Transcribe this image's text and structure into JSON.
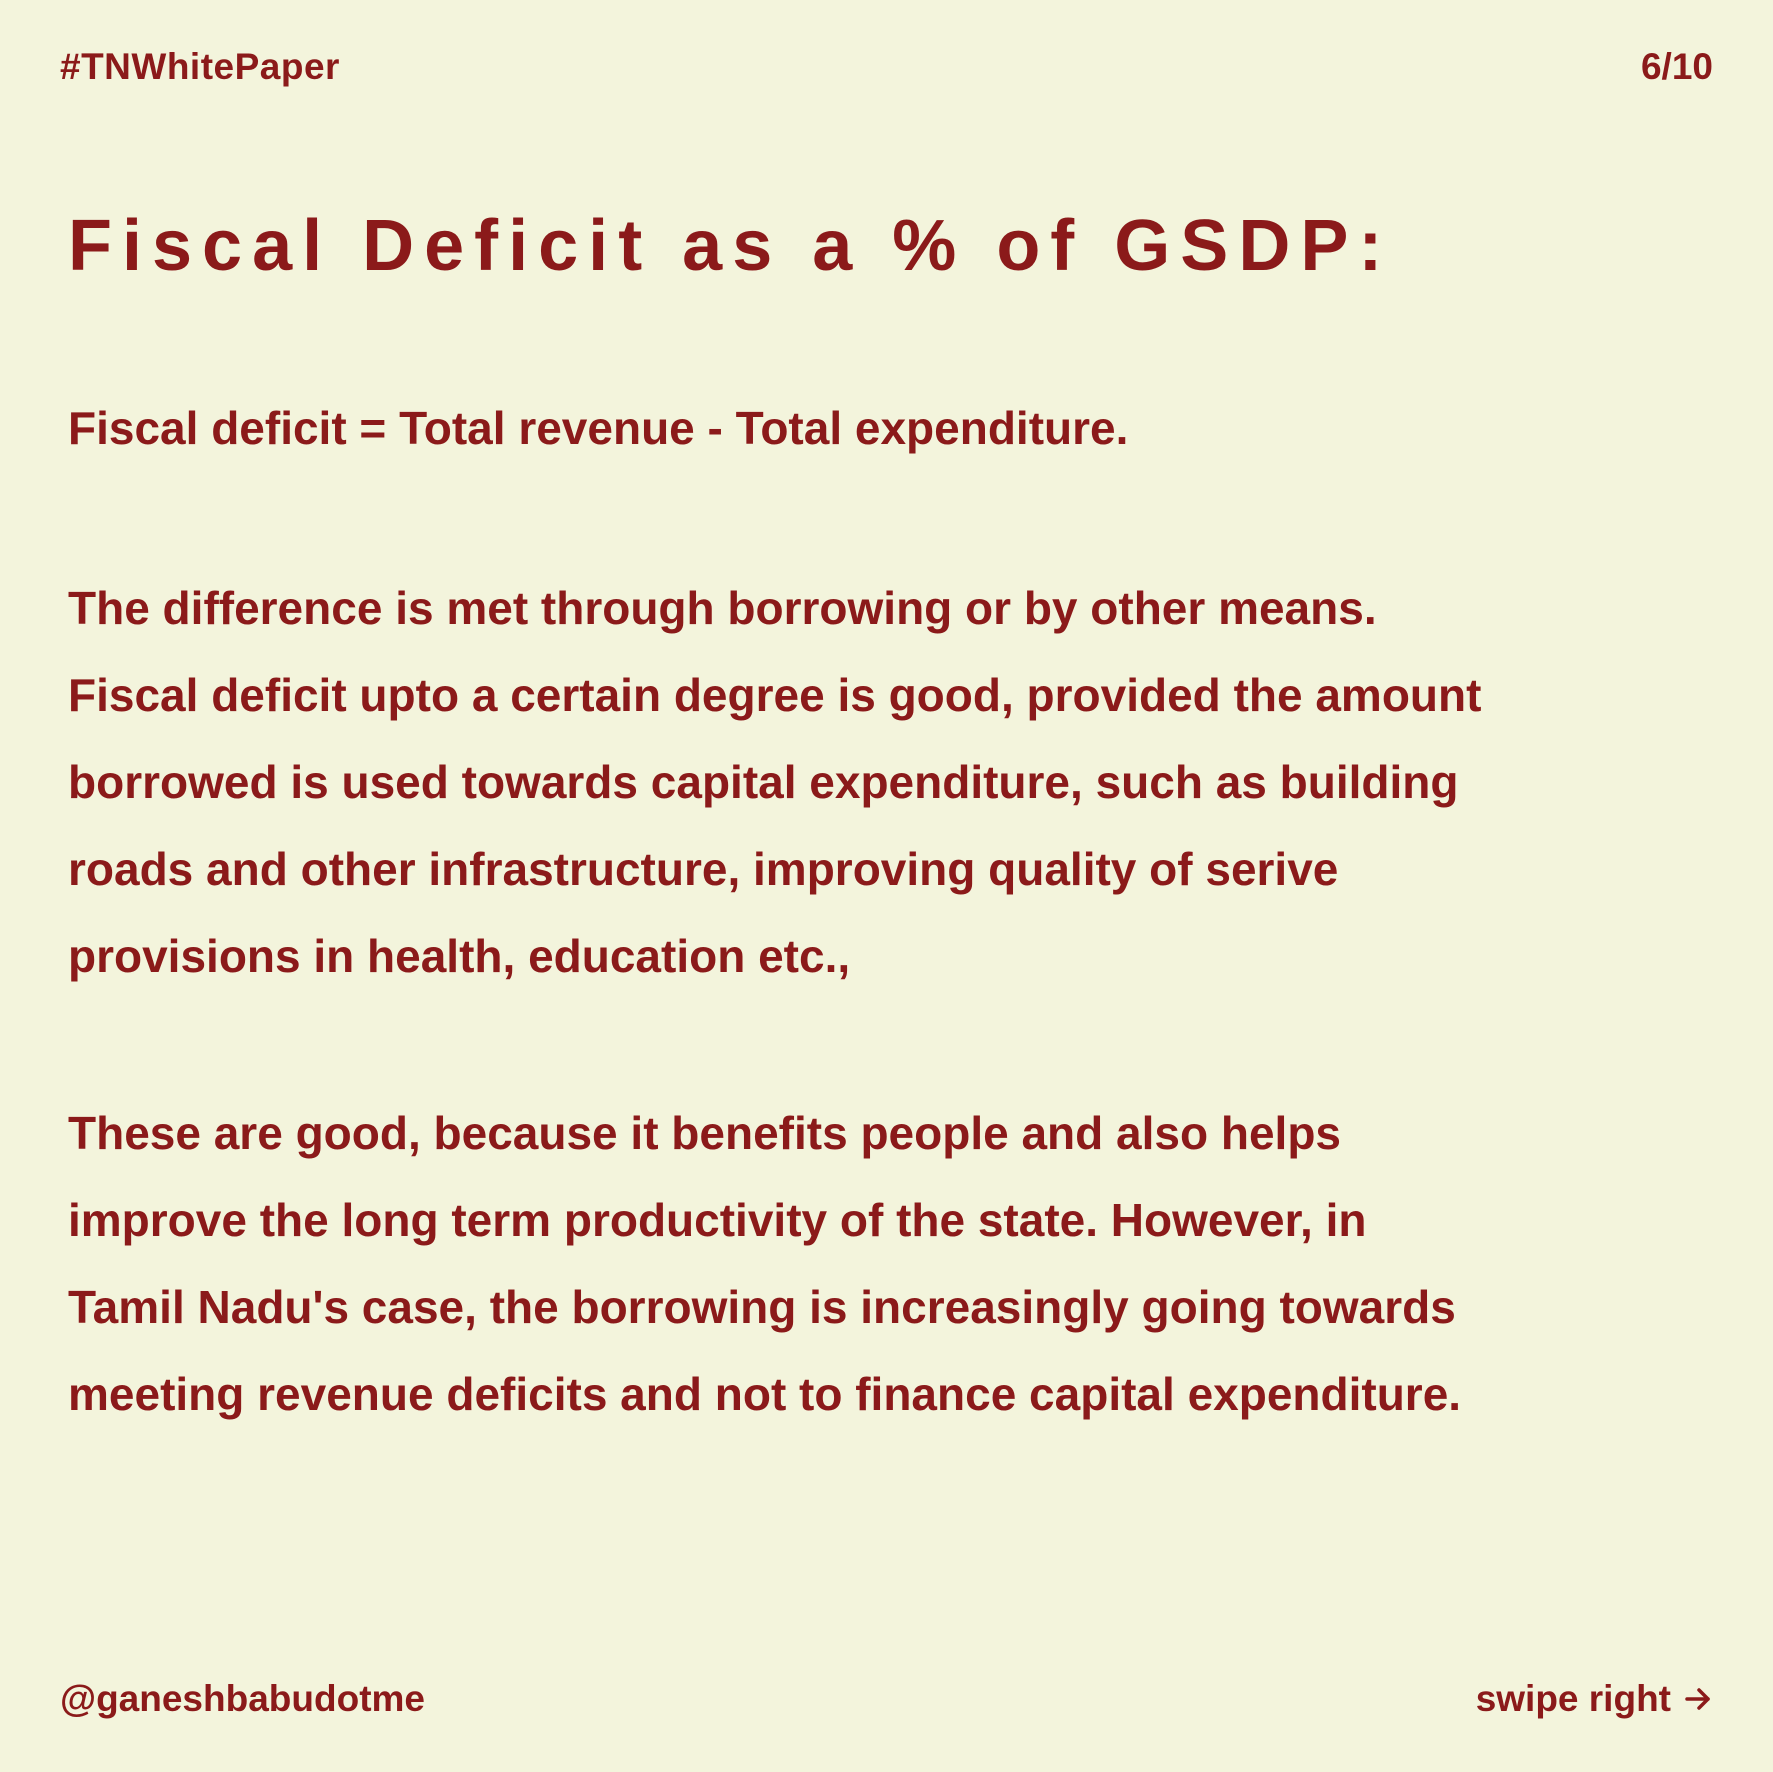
{
  "header": {
    "hashtag": "#TNWhitePaper",
    "page_counter": "6/10"
  },
  "title": "Fiscal Deficit as a % of GSDP:",
  "formula": "Fiscal deficit = Total revenue - Total expenditure.",
  "paragraph_1": {
    "lines": [
      "The difference is met through borrowing or by other means.",
      "Fiscal deficit upto a certain degree is good, provided the amount",
      "borrowed is used towards capital expenditure, such as building",
      "roads and other infrastructure, improving quality of serive",
      "provisions in health, education etc.,"
    ]
  },
  "paragraph_2": {
    "lines": [
      "These are good, because it benefits people and also helps",
      "improve the long term productivity of the state. However, in",
      "Tamil Nadu's case, the borrowing is increasingly going towards",
      "meeting revenue deficits and not to finance capital expenditure."
    ]
  },
  "footer": {
    "handle": "@ganeshbabudotme",
    "swipe_label": "swipe right",
    "swipe_icon": "arrow-right-icon"
  },
  "colors": {
    "background": "#f3f4dc",
    "text": "#8b1a1a"
  }
}
